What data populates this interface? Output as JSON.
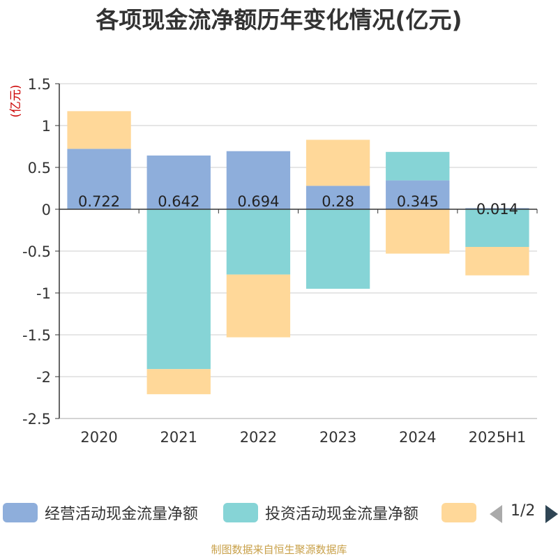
{
  "chart_data": {
    "type": "bar",
    "stacked": true,
    "title": "各项现金流净额历年变化情况(亿元)",
    "ylabel": "(亿元)",
    "xlabel": "",
    "ylim": [
      -2.5,
      1.5
    ],
    "yticks": [
      1.5,
      1,
      0.5,
      0,
      -0.5,
      -1,
      -1.5,
      -2,
      -2.5
    ],
    "ytick_labels": [
      "1.5",
      "1",
      "0.5",
      "0",
      "-0.5",
      "-1",
      "-1.5",
      "-2",
      "-2.5"
    ],
    "categories": [
      "2020",
      "2021",
      "2022",
      "2023",
      "2024",
      "2025H1"
    ],
    "grid": true,
    "legend_position": "bottom",
    "series": [
      {
        "name": "经营活动现金流量净额",
        "color": "#8eaedb",
        "values": [
          0.722,
          0.642,
          0.694,
          0.28,
          0.345,
          0.014
        ],
        "labels": [
          "0.722",
          "0.642",
          "0.694",
          "0.28",
          "0.345",
          "0.014"
        ]
      },
      {
        "name": "投资活动现金流量净额",
        "color": "#86d4d6",
        "values": [
          0,
          -1.91,
          -0.78,
          -0.95,
          0.34,
          -0.45
        ]
      },
      {
        "name": "",
        "color": "#ffd899",
        "values": [
          0.45,
          -0.3,
          -0.75,
          0.55,
          -0.53,
          -0.34
        ]
      }
    ]
  },
  "legend": {
    "page": "1/2",
    "prev_icon": "chevron-left-icon",
    "next_icon": "chevron-right-icon"
  },
  "source": "制图数据来自恒生聚源数据库"
}
